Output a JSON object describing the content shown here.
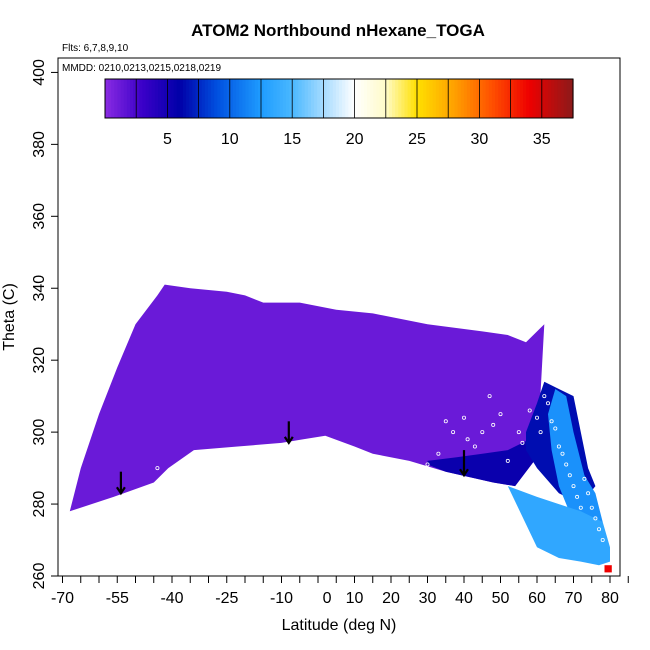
{
  "chart_data": {
    "type": "heatmap",
    "title": "ATOM2 Northbound nHexane_TOGA",
    "subtitle_flights": "Flts: 6,7,8,9,10",
    "subtitle_dates": "MMDD: 0210,0213,0215,0218,0219",
    "xlabel": "Latitude (deg N)",
    "ylabel": "Theta (C)",
    "xlim": [
      -70,
      85
    ],
    "ylim": [
      260,
      402
    ],
    "x_ticks": [
      -70,
      -55,
      -40,
      -25,
      -10,
      5,
      20,
      35,
      50,
      65,
      80
    ],
    "x_tick_labels": [
      "-70",
      "-55",
      "-40",
      "-25",
      "-10",
      "0",
      "10",
      "20",
      "30",
      "40",
      "50",
      "60",
      "70",
      "80"
    ],
    "x_tick_label_positions": [
      -70,
      -55,
      -40,
      -25,
      -10,
      2.5,
      10,
      20,
      30,
      40,
      50,
      60,
      70,
      80
    ],
    "x_minor_ticks": [
      -65,
      -60,
      -50,
      -45,
      -35,
      -30,
      -20,
      -15,
      -5,
      0,
      10,
      15,
      25,
      30,
      40,
      45,
      55,
      60,
      70,
      75,
      85
    ],
    "y_ticks": [
      260,
      280,
      300,
      320,
      340,
      360,
      380,
      400
    ],
    "colorbar": {
      "min": 0,
      "max": 37.5,
      "ticks": [
        5,
        10,
        15,
        20,
        25,
        30,
        35
      ],
      "stops": [
        {
          "v": 0,
          "color": "#8a2be2"
        },
        {
          "v": 3,
          "color": "#3a00c8"
        },
        {
          "v": 6,
          "color": "#0000a8"
        },
        {
          "v": 9,
          "color": "#0050e0"
        },
        {
          "v": 12.5,
          "color": "#1e9cff"
        },
        {
          "v": 15,
          "color": "#4ab8ff"
        },
        {
          "v": 18,
          "color": "#b8e2ff"
        },
        {
          "v": 20,
          "color": "#ffffff"
        },
        {
          "v": 22.5,
          "color": "#fffbc8"
        },
        {
          "v": 25,
          "color": "#ffe000"
        },
        {
          "v": 28,
          "color": "#ffa000"
        },
        {
          "v": 31,
          "color": "#ff5000"
        },
        {
          "v": 34,
          "color": "#ee0000"
        },
        {
          "v": 37.5,
          "color": "#8b1a1a"
        }
      ]
    },
    "regions": [
      {
        "name": "main-field",
        "value": 1.2,
        "polygon": [
          [
            -68,
            278
          ],
          [
            -56,
            282
          ],
          [
            -45,
            286
          ],
          [
            -41,
            290
          ],
          [
            -34,
            295
          ],
          [
            -22,
            296
          ],
          [
            -10,
            297
          ],
          [
            -4,
            298
          ],
          [
            2,
            299
          ],
          [
            10,
            296
          ],
          [
            15,
            294
          ],
          [
            25,
            292
          ],
          [
            35,
            289
          ],
          [
            48,
            286
          ],
          [
            54,
            285
          ],
          [
            60,
            293
          ],
          [
            62,
            330
          ],
          [
            57,
            325
          ],
          [
            52,
            327
          ],
          [
            45,
            328
          ],
          [
            30,
            330
          ],
          [
            15,
            333
          ],
          [
            5,
            334
          ],
          [
            -5,
            336
          ],
          [
            -15,
            336
          ],
          [
            -20,
            338
          ],
          [
            -25,
            339
          ],
          [
            -35,
            340
          ],
          [
            -42,
            341
          ],
          [
            -44,
            338
          ],
          [
            -50,
            330
          ],
          [
            -55,
            318
          ],
          [
            -60,
            305
          ],
          [
            -65,
            290
          ],
          [
            -68,
            278
          ]
        ]
      },
      {
        "name": "dark-band-mid",
        "value": 5.5,
        "polygon": [
          [
            30,
            292
          ],
          [
            38,
            293
          ],
          [
            45,
            294
          ],
          [
            52,
            295
          ],
          [
            58,
            298
          ],
          [
            60,
            293
          ],
          [
            54,
            285
          ],
          [
            48,
            286
          ],
          [
            35,
            289
          ],
          [
            30,
            291
          ]
        ]
      },
      {
        "name": "dark-column-north",
        "value": 6.5,
        "polygon": [
          [
            57,
            300
          ],
          [
            60,
            308
          ],
          [
            62,
            314
          ],
          [
            66,
            312
          ],
          [
            70,
            310
          ],
          [
            72,
            300
          ],
          [
            74,
            290
          ],
          [
            76,
            285
          ],
          [
            72,
            280
          ],
          [
            66,
            283
          ],
          [
            60,
            290
          ],
          [
            57,
            295
          ]
        ]
      },
      {
        "name": "blue-column",
        "value": 12,
        "polygon": [
          [
            63,
            305
          ],
          [
            65,
            312
          ],
          [
            68,
            310
          ],
          [
            70,
            300
          ],
          [
            73,
            288
          ],
          [
            76,
            283
          ],
          [
            78,
            275
          ],
          [
            74,
            270
          ],
          [
            70,
            275
          ],
          [
            66,
            285
          ],
          [
            64,
            295
          ]
        ]
      },
      {
        "name": "light-blue-southern-wedge",
        "value": 13.5,
        "polygon": [
          [
            52,
            285
          ],
          [
            60,
            282
          ],
          [
            66,
            280
          ],
          [
            72,
            278
          ],
          [
            78,
            275
          ],
          [
            80,
            268
          ],
          [
            80,
            264
          ],
          [
            77,
            263
          ],
          [
            72,
            264
          ],
          [
            66,
            265
          ],
          [
            60,
            268
          ]
        ]
      },
      {
        "name": "hot-spot",
        "value": 34,
        "polygon": [
          [
            78.5,
            261
          ],
          [
            80.5,
            261
          ],
          [
            80.5,
            263
          ],
          [
            78.5,
            263
          ]
        ]
      }
    ],
    "arrows": [
      {
        "name": "arrow-1",
        "lat": -54,
        "top": 289,
        "bottom": 283
      },
      {
        "name": "arrow-2",
        "lat": -8,
        "top": 303,
        "bottom": 297
      },
      {
        "name": "arrow-3",
        "lat": 40,
        "top": 295,
        "bottom": 288
      }
    ],
    "sample_points": [
      {
        "lat": -44,
        "theta": 290
      },
      {
        "lat": -42,
        "theta": 287
      },
      {
        "lat": 30,
        "theta": 291
      },
      {
        "lat": 33,
        "theta": 294
      },
      {
        "lat": 35,
        "theta": 303
      },
      {
        "lat": 37,
        "theta": 300
      },
      {
        "lat": 40,
        "theta": 304
      },
      {
        "lat": 41,
        "theta": 298
      },
      {
        "lat": 43,
        "theta": 296
      },
      {
        "lat": 45,
        "theta": 300
      },
      {
        "lat": 47,
        "theta": 310
      },
      {
        "lat": 48,
        "theta": 302
      },
      {
        "lat": 50,
        "theta": 305
      },
      {
        "lat": 52,
        "theta": 292
      },
      {
        "lat": 55,
        "theta": 300
      },
      {
        "lat": 56,
        "theta": 297
      },
      {
        "lat": 58,
        "theta": 306
      },
      {
        "lat": 60,
        "theta": 304
      },
      {
        "lat": 61,
        "theta": 300
      },
      {
        "lat": 62,
        "theta": 310
      },
      {
        "lat": 63,
        "theta": 308
      },
      {
        "lat": 64,
        "theta": 303
      },
      {
        "lat": 65,
        "theta": 301
      },
      {
        "lat": 66,
        "theta": 296
      },
      {
        "lat": 67,
        "theta": 294
      },
      {
        "lat": 68,
        "theta": 291
      },
      {
        "lat": 69,
        "theta": 288
      },
      {
        "lat": 70,
        "theta": 285
      },
      {
        "lat": 71,
        "theta": 282
      },
      {
        "lat": 72,
        "theta": 279
      },
      {
        "lat": 73,
        "theta": 287
      },
      {
        "lat": 74,
        "theta": 283
      },
      {
        "lat": 75,
        "theta": 279
      },
      {
        "lat": 76,
        "theta": 276
      },
      {
        "lat": 77,
        "theta": 273
      },
      {
        "lat": 78,
        "theta": 270
      }
    ]
  }
}
